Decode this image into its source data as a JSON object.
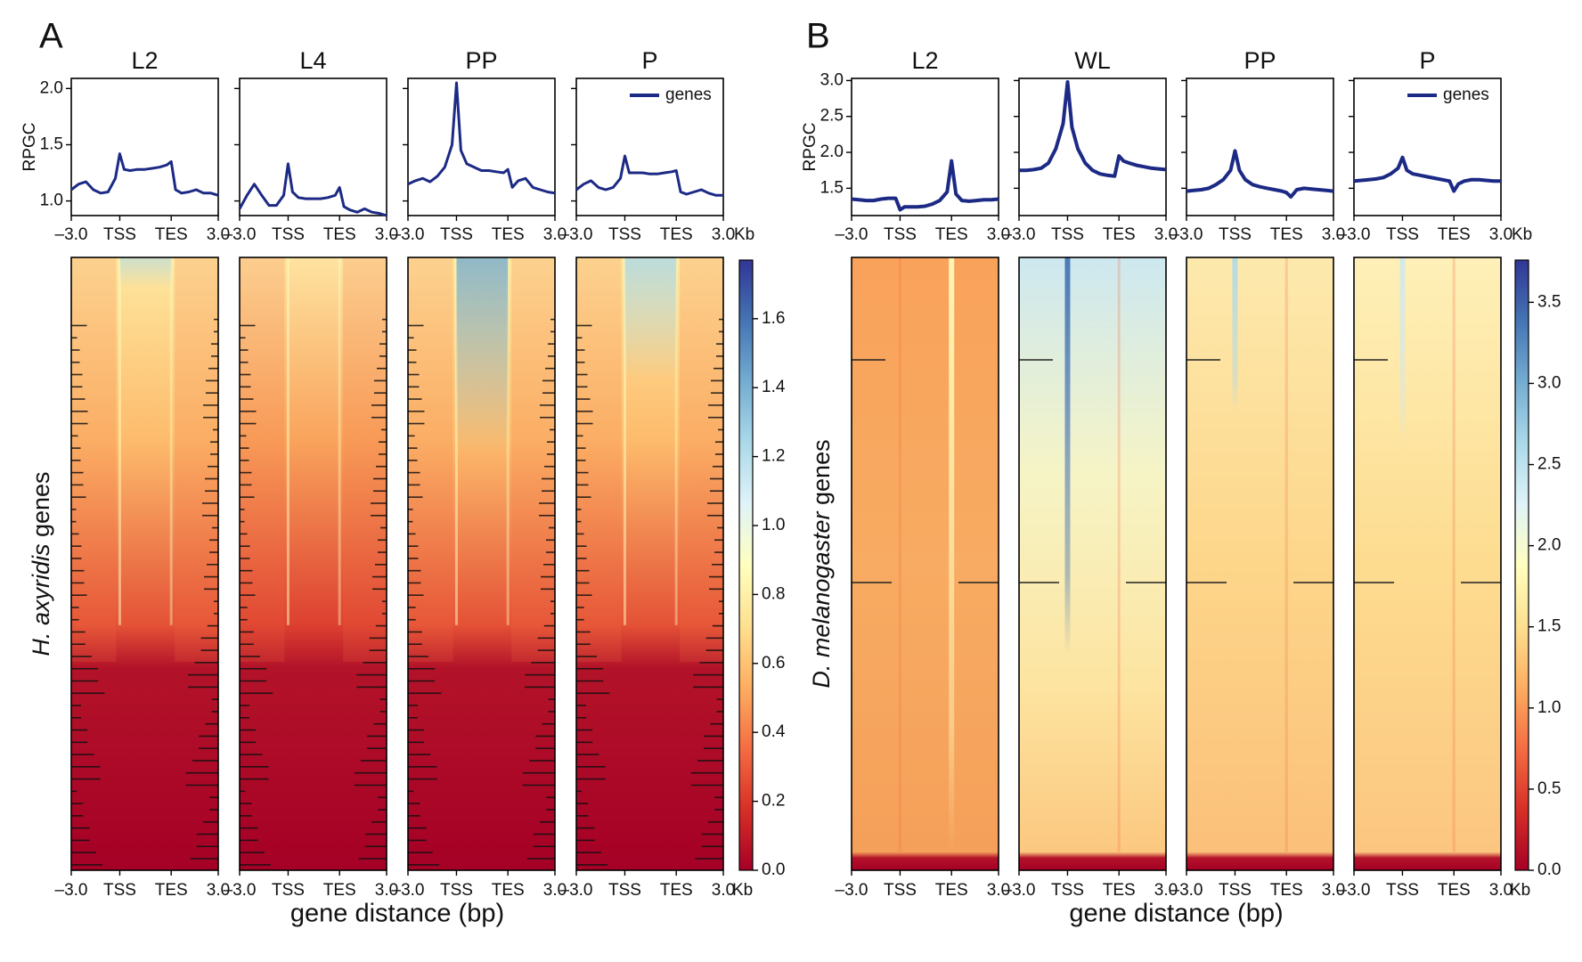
{
  "chart_data": [
    {
      "type": "line",
      "label": "A",
      "ylabel": "RPGC",
      "xlabel": "gene distance (bp)",
      "x_unit": "Kb",
      "legend": "genes",
      "legend_loc": "upper right",
      "color": "#1c2a85",
      "x": [
        0,
        5,
        10,
        15,
        20,
        25,
        30,
        33,
        36,
        40,
        45,
        50,
        55,
        60,
        65,
        68,
        71,
        75,
        80,
        85,
        90,
        95,
        100
      ],
      "xlim": [
        0,
        100
      ],
      "xticks": [
        {
          "value": 0,
          "label": "–3.0"
        },
        {
          "value": 33,
          "label": "TSS"
        },
        {
          "value": 68,
          "label": "TES"
        },
        {
          "value": 100,
          "label": "3.0"
        }
      ],
      "ylim": [
        0.87,
        2.09
      ],
      "yticks": [
        {
          "value": 1.0,
          "label": "1.0"
        },
        {
          "value": 1.5,
          "label": "1.5"
        },
        {
          "value": 2.0,
          "label": "2.0"
        }
      ],
      "subplots": [
        {
          "title": "L2",
          "values": [
            1.1,
            1.15,
            1.17,
            1.1,
            1.07,
            1.08,
            1.2,
            1.42,
            1.28,
            1.27,
            1.28,
            1.28,
            1.29,
            1.3,
            1.32,
            1.35,
            1.1,
            1.07,
            1.08,
            1.1,
            1.07,
            1.07,
            1.05
          ]
        },
        {
          "title": "L4",
          "values": [
            0.93,
            1.05,
            1.15,
            1.05,
            0.96,
            0.96,
            1.05,
            1.33,
            1.08,
            1.03,
            1.02,
            1.02,
            1.02,
            1.03,
            1.05,
            1.12,
            0.95,
            0.92,
            0.9,
            0.93,
            0.9,
            0.89,
            0.87
          ]
        },
        {
          "title": "PP",
          "values": [
            1.15,
            1.18,
            1.2,
            1.17,
            1.22,
            1.3,
            1.5,
            2.05,
            1.45,
            1.33,
            1.3,
            1.27,
            1.27,
            1.26,
            1.25,
            1.28,
            1.12,
            1.18,
            1.2,
            1.12,
            1.1,
            1.08,
            1.07
          ]
        },
        {
          "title": "P",
          "values": [
            1.1,
            1.15,
            1.18,
            1.12,
            1.1,
            1.12,
            1.2,
            1.4,
            1.25,
            1.25,
            1.25,
            1.24,
            1.24,
            1.25,
            1.26,
            1.27,
            1.08,
            1.06,
            1.08,
            1.1,
            1.07,
            1.05,
            1.05
          ]
        }
      ],
      "heatmap": {
        "species": "H. axyridis",
        "label": "genes",
        "clim": [
          0,
          1.77
        ],
        "cticks": [
          {
            "value": 0,
            "label": "0.0"
          },
          {
            "value": 0.2,
            "label": "0.2"
          },
          {
            "value": 0.4,
            "label": "0.4"
          },
          {
            "value": 0.6,
            "label": "0.6"
          },
          {
            "value": 0.8,
            "label": "0.8"
          },
          {
            "value": 1.0,
            "label": "1.0"
          },
          {
            "value": 1.2,
            "label": "1.2"
          },
          {
            "value": 1.4,
            "label": "1.4"
          },
          {
            "value": 1.6,
            "label": "1.6"
          }
        ],
        "colormap": [
          "#a50026",
          "#d73027",
          "#f46d43",
          "#fdae61",
          "#fee090",
          "#ffffbf",
          "#e0f3f8",
          "#abd9e9",
          "#74add1",
          "#4575b4",
          "#313695"
        ]
      }
    },
    {
      "type": "line",
      "label": "B",
      "ylabel": "RPGC",
      "xlabel": "gene distance (bp)",
      "x_unit": "Kb",
      "legend": "genes",
      "legend_loc": "upper right",
      "color": "#1c2a85",
      "x": [
        0,
        5,
        10,
        15,
        20,
        25,
        30,
        33,
        36,
        40,
        45,
        50,
        55,
        60,
        65,
        68,
        71,
        75,
        80,
        85,
        90,
        95,
        100
      ],
      "xlim": [
        0,
        100
      ],
      "xticks": [
        {
          "value": 0,
          "label": "–3.0"
        },
        {
          "value": 33,
          "label": "TSS"
        },
        {
          "value": 68,
          "label": "TES"
        },
        {
          "value": 100,
          "label": "3.0"
        }
      ],
      "ylim": [
        1.12,
        3.03
      ],
      "yticks": [
        {
          "value": 1.5,
          "label": "1.5"
        },
        {
          "value": 2.0,
          "label": "2.0"
        },
        {
          "value": 2.5,
          "label": "2.5"
        },
        {
          "value": 3.0,
          "label": "3.0"
        }
      ],
      "subplots": [
        {
          "title": "L2",
          "values": [
            1.35,
            1.34,
            1.33,
            1.33,
            1.35,
            1.36,
            1.36,
            1.2,
            1.24,
            1.24,
            1.24,
            1.25,
            1.28,
            1.33,
            1.45,
            1.88,
            1.42,
            1.33,
            1.32,
            1.33,
            1.34,
            1.34,
            1.35
          ]
        },
        {
          "title": "WL",
          "values": [
            1.75,
            1.75,
            1.76,
            1.78,
            1.85,
            2.05,
            2.4,
            2.98,
            2.35,
            2.05,
            1.85,
            1.75,
            1.7,
            1.68,
            1.67,
            1.95,
            1.88,
            1.85,
            1.82,
            1.8,
            1.78,
            1.77,
            1.76
          ]
        },
        {
          "title": "PP",
          "values": [
            1.46,
            1.47,
            1.48,
            1.5,
            1.55,
            1.62,
            1.75,
            2.02,
            1.75,
            1.62,
            1.55,
            1.52,
            1.5,
            1.48,
            1.46,
            1.44,
            1.38,
            1.48,
            1.5,
            1.49,
            1.48,
            1.47,
            1.46
          ]
        },
        {
          "title": "P",
          "values": [
            1.6,
            1.61,
            1.62,
            1.63,
            1.65,
            1.7,
            1.78,
            1.93,
            1.75,
            1.7,
            1.68,
            1.66,
            1.64,
            1.62,
            1.6,
            1.46,
            1.56,
            1.6,
            1.62,
            1.62,
            1.61,
            1.6,
            1.6
          ]
        }
      ],
      "heatmap": {
        "species": "D. melanogaster",
        "label": "genes",
        "clim": [
          0,
          3.76
        ],
        "cticks": [
          {
            "value": 0,
            "label": "0.0"
          },
          {
            "value": 0.5,
            "label": "0.5"
          },
          {
            "value": 1.0,
            "label": "1.0"
          },
          {
            "value": 1.5,
            "label": "1.5"
          },
          {
            "value": 2.0,
            "label": "2.0"
          },
          {
            "value": 2.5,
            "label": "2.5"
          },
          {
            "value": 3.0,
            "label": "3.0"
          },
          {
            "value": 3.5,
            "label": "3.5"
          }
        ],
        "colormap": [
          "#a50026",
          "#d73027",
          "#f46d43",
          "#fdae61",
          "#fee090",
          "#ffffbf",
          "#e0f3f8",
          "#abd9e9",
          "#74add1",
          "#4575b4",
          "#313695"
        ]
      }
    }
  ]
}
